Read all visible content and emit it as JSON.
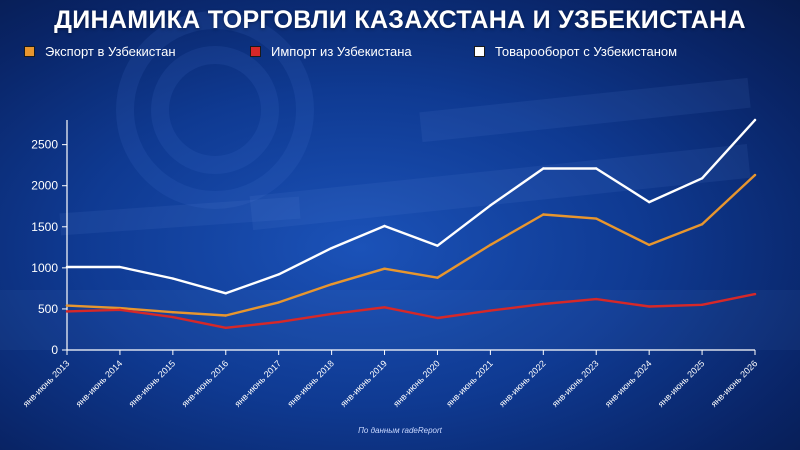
{
  "title": "ДИНАМИКА ТОРГОВЛИ КАЗАХСТАНА И УЗБЕКИСТАНА",
  "source_note": "По данным radeReport",
  "chart_data": {
    "type": "line",
    "title": "ДИНАМИКА ТОРГОВЛИ КАЗАХСТАНА И УЗБЕКИСТАНА",
    "xlabel": "",
    "ylabel": "",
    "ylim": [
      0,
      2800
    ],
    "yticks": [
      0,
      500,
      1000,
      1500,
      2000,
      2500
    ],
    "grid": false,
    "legend_position": "top",
    "categories": [
      "янв-июнь 2013",
      "янв-июнь 2014",
      "янв-июнь 2015",
      "янв-июнь 2016",
      "янв-июнь 2017",
      "янв-июнь 2018",
      "янв-июнь 2019",
      "янв-июнь 2020",
      "янв-июнь 2021",
      "янв-июнь 2022",
      "янв-июнь 2023",
      "янв-июнь 2024",
      "янв-июнь 2025",
      "янв-июнь 2026"
    ],
    "series": [
      {
        "name": "Экспорт в Узбекистан",
        "color": "#e8962e",
        "values": [
          540,
          510,
          460,
          420,
          580,
          800,
          990,
          880,
          1280,
          1650,
          1600,
          1280,
          1530,
          2130
        ]
      },
      {
        "name": "Импорт из Узбекистана",
        "color": "#d62828",
        "values": [
          470,
          490,
          400,
          270,
          340,
          440,
          520,
          390,
          480,
          560,
          620,
          530,
          550,
          680
        ]
      },
      {
        "name": "Товарооборот с Узбекистаном",
        "color": "#ffffff",
        "values": [
          1010,
          1010,
          870,
          690,
          920,
          1240,
          1510,
          1270,
          1760,
          2210,
          2210,
          1800,
          2090,
          2800
        ]
      }
    ]
  }
}
